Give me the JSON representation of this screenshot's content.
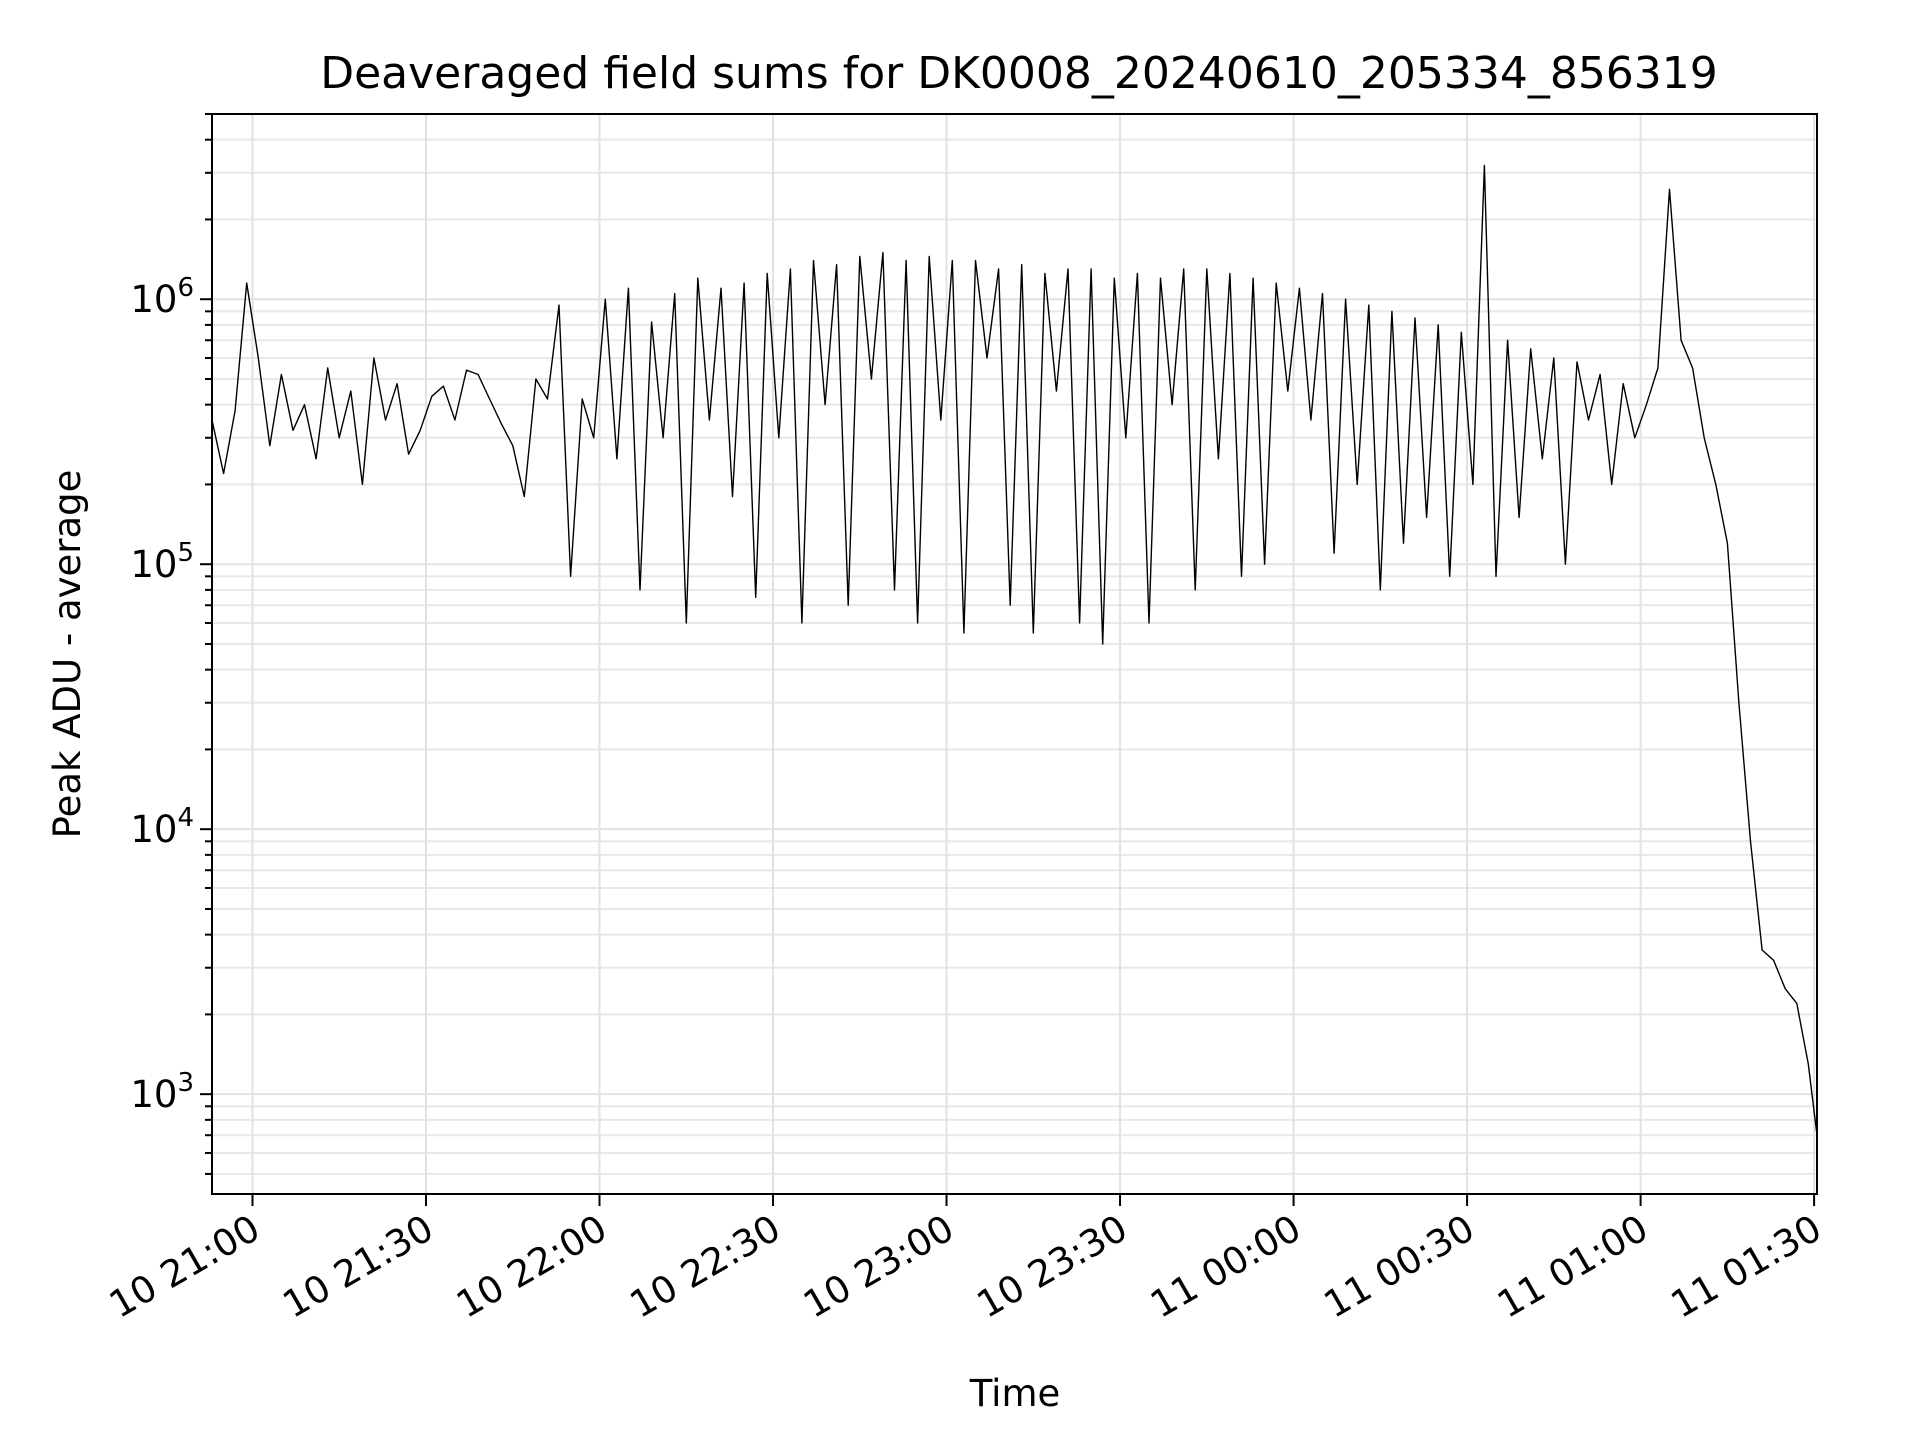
{
  "chart_data": {
    "type": "line",
    "title": "Deaveraged field sums for DK0008_20240610_205334_856319",
    "xlabel": "Time",
    "ylabel": "Peak ADU - average",
    "yscale": "log",
    "ylim": [
      420,
      5000000
    ],
    "xlim": [
      "2024-06-10 20:53:00",
      "2024-06-11 01:30:30"
    ],
    "grid": true,
    "x_ticks": [
      {
        "t": "2024-06-10 21:00",
        "label": "10 21:00"
      },
      {
        "t": "2024-06-10 21:30",
        "label": "10 21:30"
      },
      {
        "t": "2024-06-10 22:00",
        "label": "10 22:00"
      },
      {
        "t": "2024-06-10 22:30",
        "label": "10 22:30"
      },
      {
        "t": "2024-06-10 23:00",
        "label": "10 23:00"
      },
      {
        "t": "2024-06-10 23:30",
        "label": "10 23:30"
      },
      {
        "t": "2024-06-11 00:00",
        "label": "11 00:00"
      },
      {
        "t": "2024-06-11 00:30",
        "label": "11 00:30"
      },
      {
        "t": "2024-06-11 01:00",
        "label": "11 01:00"
      },
      {
        "t": "2024-06-11 01:30",
        "label": "11 01:30"
      }
    ],
    "y_ticks": [
      {
        "value": 1000,
        "base": "10",
        "exp": "3"
      },
      {
        "value": 10000,
        "base": "10",
        "exp": "4"
      },
      {
        "value": 100000,
        "base": "10",
        "exp": "5"
      },
      {
        "value": 1000000,
        "base": "10",
        "exp": "6"
      }
    ],
    "series": [
      {
        "color": "#000000",
        "x": [
          "2024-06-10 20:53:00",
          "2024-06-10 20:55:00",
          "2024-06-10 20:57:00",
          "2024-06-10 20:59:00",
          "2024-06-10 21:01:00",
          "2024-06-10 21:03:00",
          "2024-06-10 21:05:00",
          "2024-06-10 21:07:00",
          "2024-06-10 21:09:00",
          "2024-06-10 21:11:00",
          "2024-06-10 21:13:00",
          "2024-06-10 21:15:00",
          "2024-06-10 21:17:00",
          "2024-06-10 21:19:00",
          "2024-06-10 21:21:00",
          "2024-06-10 21:23:00",
          "2024-06-10 21:25:00",
          "2024-06-10 21:27:00",
          "2024-06-10 21:29:00",
          "2024-06-10 21:31:00",
          "2024-06-10 21:33:00",
          "2024-06-10 21:35:00",
          "2024-06-10 21:37:00",
          "2024-06-10 21:39:00",
          "2024-06-10 21:41:00",
          "2024-06-10 21:43:00",
          "2024-06-10 21:45:00",
          "2024-06-10 21:47:00",
          "2024-06-10 21:49:00",
          "2024-06-10 21:51:00",
          "2024-06-10 21:53:00",
          "2024-06-10 21:55:00",
          "2024-06-10 21:57:00",
          "2024-06-10 21:59:00",
          "2024-06-10 22:01:00",
          "2024-06-10 22:03:00",
          "2024-06-10 22:05:00",
          "2024-06-10 22:07:00",
          "2024-06-10 22:09:00",
          "2024-06-10 22:11:00",
          "2024-06-10 22:13:00",
          "2024-06-10 22:15:00",
          "2024-06-10 22:17:00",
          "2024-06-10 22:19:00",
          "2024-06-10 22:21:00",
          "2024-06-10 22:23:00",
          "2024-06-10 22:25:00",
          "2024-06-10 22:27:00",
          "2024-06-10 22:29:00",
          "2024-06-10 22:31:00",
          "2024-06-10 22:33:00",
          "2024-06-10 22:35:00",
          "2024-06-10 22:37:00",
          "2024-06-10 22:39:00",
          "2024-06-10 22:41:00",
          "2024-06-10 22:43:00",
          "2024-06-10 22:45:00",
          "2024-06-10 22:47:00",
          "2024-06-10 22:49:00",
          "2024-06-10 22:51:00",
          "2024-06-10 22:53:00",
          "2024-06-10 22:55:00",
          "2024-06-10 22:57:00",
          "2024-06-10 22:59:00",
          "2024-06-10 23:01:00",
          "2024-06-10 23:03:00",
          "2024-06-10 23:05:00",
          "2024-06-10 23:07:00",
          "2024-06-10 23:09:00",
          "2024-06-10 23:11:00",
          "2024-06-10 23:13:00",
          "2024-06-10 23:15:00",
          "2024-06-10 23:17:00",
          "2024-06-10 23:19:00",
          "2024-06-10 23:21:00",
          "2024-06-10 23:23:00",
          "2024-06-10 23:25:00",
          "2024-06-10 23:27:00",
          "2024-06-10 23:29:00",
          "2024-06-10 23:31:00",
          "2024-06-10 23:33:00",
          "2024-06-10 23:35:00",
          "2024-06-10 23:37:00",
          "2024-06-10 23:39:00",
          "2024-06-10 23:41:00",
          "2024-06-10 23:43:00",
          "2024-06-10 23:45:00",
          "2024-06-10 23:47:00",
          "2024-06-10 23:49:00",
          "2024-06-10 23:51:00",
          "2024-06-10 23:53:00",
          "2024-06-10 23:55:00",
          "2024-06-10 23:57:00",
          "2024-06-10 23:59:00",
          "2024-06-11 00:01:00",
          "2024-06-11 00:03:00",
          "2024-06-11 00:05:00",
          "2024-06-11 00:07:00",
          "2024-06-11 00:09:00",
          "2024-06-11 00:11:00",
          "2024-06-11 00:13:00",
          "2024-06-11 00:15:00",
          "2024-06-11 00:17:00",
          "2024-06-11 00:19:00",
          "2024-06-11 00:21:00",
          "2024-06-11 00:23:00",
          "2024-06-11 00:25:00",
          "2024-06-11 00:27:00",
          "2024-06-11 00:29:00",
          "2024-06-11 00:31:00",
          "2024-06-11 00:33:00",
          "2024-06-11 00:35:00",
          "2024-06-11 00:37:00",
          "2024-06-11 00:39:00",
          "2024-06-11 00:41:00",
          "2024-06-11 00:43:00",
          "2024-06-11 00:45:00",
          "2024-06-11 00:47:00",
          "2024-06-11 00:49:00",
          "2024-06-11 00:51:00",
          "2024-06-11 00:53:00",
          "2024-06-11 00:55:00",
          "2024-06-11 00:57:00",
          "2024-06-11 00:59:00",
          "2024-06-11 01:01:00",
          "2024-06-11 01:03:00",
          "2024-06-11 01:05:00",
          "2024-06-11 01:07:00",
          "2024-06-11 01:09:00",
          "2024-06-11 01:11:00",
          "2024-06-11 01:13:00",
          "2024-06-11 01:15:00",
          "2024-06-11 01:17:00",
          "2024-06-11 01:19:00",
          "2024-06-11 01:21:00",
          "2024-06-11 01:23:00",
          "2024-06-11 01:25:00",
          "2024-06-11 01:27:00",
          "2024-06-11 01:29:00",
          "2024-06-11 01:30:30"
        ],
        "y": [
          350000,
          220000,
          380000,
          1150000,
          600000,
          280000,
          520000,
          320000,
          400000,
          250000,
          550000,
          300000,
          450000,
          200000,
          600000,
          350000,
          480000,
          260000,
          320000,
          430000,
          470000,
          350000,
          540000,
          520000,
          420000,
          340000,
          280000,
          180000,
          500000,
          420000,
          950000,
          90000,
          420000,
          300000,
          1000000,
          250000,
          1100000,
          80000,
          820000,
          300000,
          1050000,
          60000,
          1200000,
          350000,
          1100000,
          180000,
          1150000,
          75000,
          1250000,
          300000,
          1300000,
          60000,
          1400000,
          400000,
          1350000,
          70000,
          1450000,
          500000,
          1500000,
          80000,
          1400000,
          60000,
          1450000,
          350000,
          1400000,
          55000,
          1400000,
          600000,
          1300000,
          70000,
          1350000,
          55000,
          1250000,
          450000,
          1300000,
          60000,
          1300000,
          50000,
          1200000,
          300000,
          1250000,
          60000,
          1200000,
          400000,
          1300000,
          80000,
          1300000,
          250000,
          1250000,
          90000,
          1200000,
          100000,
          1150000,
          450000,
          1100000,
          350000,
          1050000,
          110000,
          1000000,
          200000,
          950000,
          80000,
          900000,
          120000,
          850000,
          150000,
          800000,
          90000,
          750000,
          200000,
          3200000,
          90000,
          700000,
          150000,
          650000,
          250000,
          600000,
          100000,
          580000,
          350000,
          520000,
          200000,
          480000,
          300000,
          400000,
          550000,
          2600000,
          700000,
          550000,
          300000,
          200000,
          120000,
          30000,
          9000,
          3500,
          3200,
          2500,
          2200,
          1300,
          700
        ],
        "y_display_note": ""
      }
    ]
  }
}
